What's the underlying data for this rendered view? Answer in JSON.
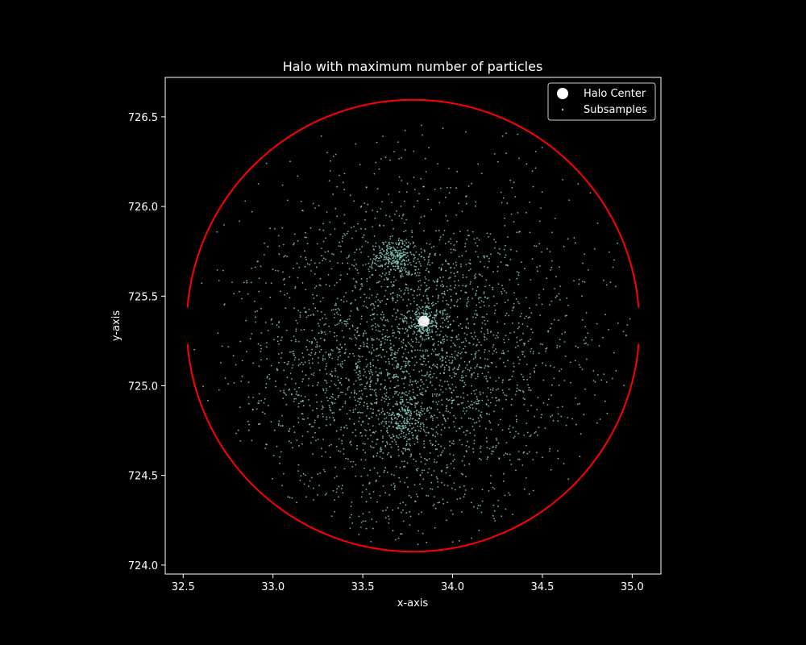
{
  "chart_data": {
    "type": "scatter",
    "title": "Halo with maximum number of particles",
    "xlabel": "x-axis",
    "ylabel": "y-axis",
    "xlim": [
      32.4,
      35.16
    ],
    "ylim": [
      723.95,
      726.72
    ],
    "xticks": [
      32.5,
      33.0,
      33.5,
      34.0,
      34.5,
      35.0
    ],
    "xtick_labels": [
      "32.5",
      "33.0",
      "33.5",
      "34.0",
      "34.5",
      "35.0"
    ],
    "yticks": [
      724.0,
      724.5,
      725.0,
      725.5,
      726.0,
      726.5
    ],
    "ytick_labels": [
      "724.0",
      "724.5",
      "725.0",
      "725.5",
      "726.0",
      "726.5"
    ],
    "grid": false,
    "legend": {
      "placement": "top-right",
      "entries": [
        {
          "label": "Halo Center",
          "marker": "large-circle",
          "color": "#ffffff"
        },
        {
          "label": "Subsamples",
          "marker": "small-dot",
          "color": "#8dd3c7"
        }
      ]
    },
    "halo_center": {
      "x": 33.84,
      "y": 725.36
    },
    "halo_radius_circle": {
      "center_x": 33.78,
      "center_y": 725.335,
      "radius": 1.26,
      "color": "#ff0000"
    },
    "subsamples": {
      "approx_count": 4000,
      "color": "#8dd3c7",
      "clusters": [
        {
          "x": 33.75,
          "y": 725.1,
          "sx": 0.38,
          "sy": 0.42,
          "weight": 0.55
        },
        {
          "x": 33.68,
          "y": 725.72,
          "sx": 0.07,
          "sy": 0.05,
          "weight": 0.06
        },
        {
          "x": 33.73,
          "y": 724.82,
          "sx": 0.05,
          "sy": 0.07,
          "weight": 0.04
        },
        {
          "x": 33.85,
          "y": 725.36,
          "sx": 0.05,
          "sy": 0.05,
          "weight": 0.04
        },
        {
          "x": 33.8,
          "y": 725.25,
          "sx": 0.62,
          "sy": 0.55,
          "weight": 0.31
        }
      ]
    }
  },
  "colors": {
    "background": "#000000",
    "axes": "#ffffff",
    "circle": "#ff0000",
    "points": "#8dd3c7",
    "center": "#ffffff"
  }
}
